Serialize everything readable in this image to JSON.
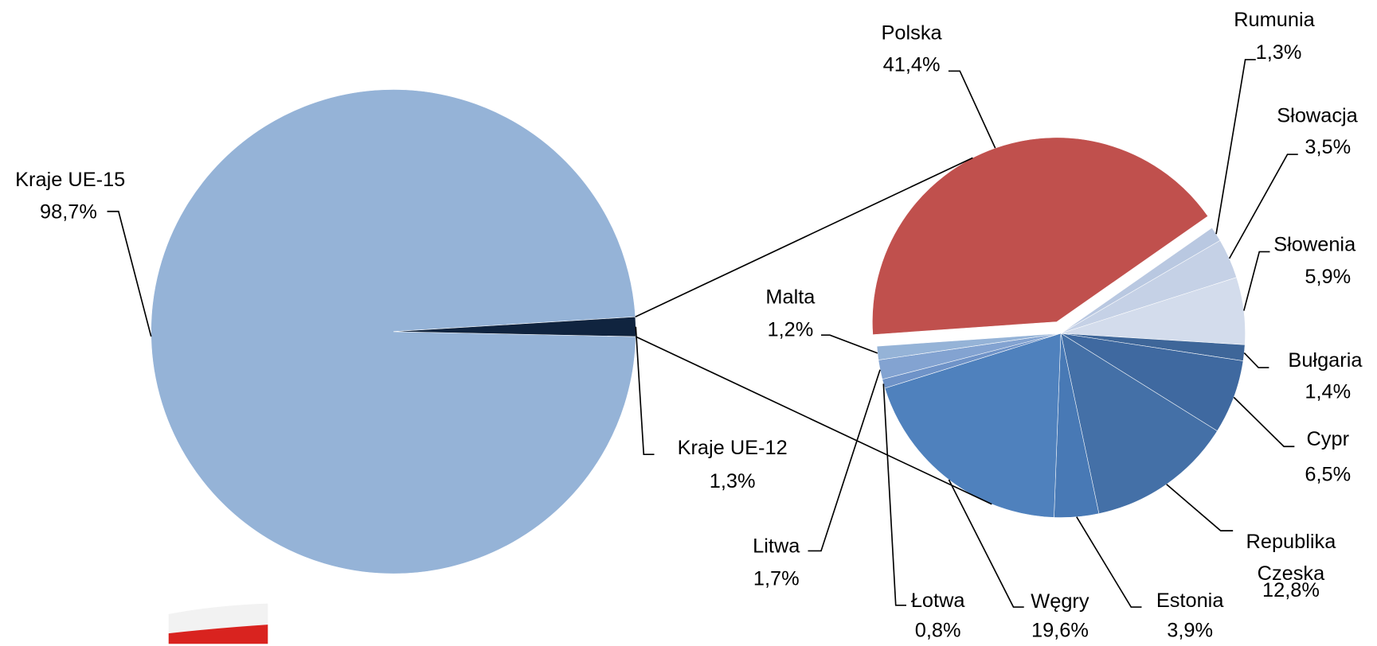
{
  "chart_data": [
    {
      "type": "pie",
      "categories": [
        "Kraje UE-15",
        "Kraje UE-12"
      ],
      "values": [
        98.7,
        1.3
      ],
      "value_labels": [
        "98,7%",
        "1,3%"
      ],
      "colors": [
        "#95b3d7",
        "#10243f"
      ]
    },
    {
      "type": "pie",
      "categories": [
        "Polska",
        "Rumunia",
        "Słowacja",
        "Słowenia",
        "Bułgaria",
        "Cypr",
        "Republika Czeska",
        "Estonia",
        "Węgry",
        "Łotwa",
        "Litwa",
        "Malta"
      ],
      "values": [
        41.4,
        1.3,
        3.5,
        5.9,
        1.4,
        6.5,
        12.8,
        3.9,
        19.6,
        0.8,
        1.7,
        1.2
      ],
      "value_labels": [
        "41,4%",
        "1,3%",
        "3,5%",
        "5,9%",
        "1,4%",
        "6,5%",
        "12,8%",
        "3,9%",
        "19,6%",
        "0,8%",
        "1,7%",
        "1,2%"
      ],
      "colors": [
        "#c0504d",
        "#b9c8e1",
        "#c5d1e6",
        "#d3dcec",
        "#3e6699",
        "#3f69a0",
        "#4470a7",
        "#4879b5",
        "#4f81bd",
        "#6f93c8",
        "#83a3d1",
        "#95b3d7"
      ]
    }
  ]
}
